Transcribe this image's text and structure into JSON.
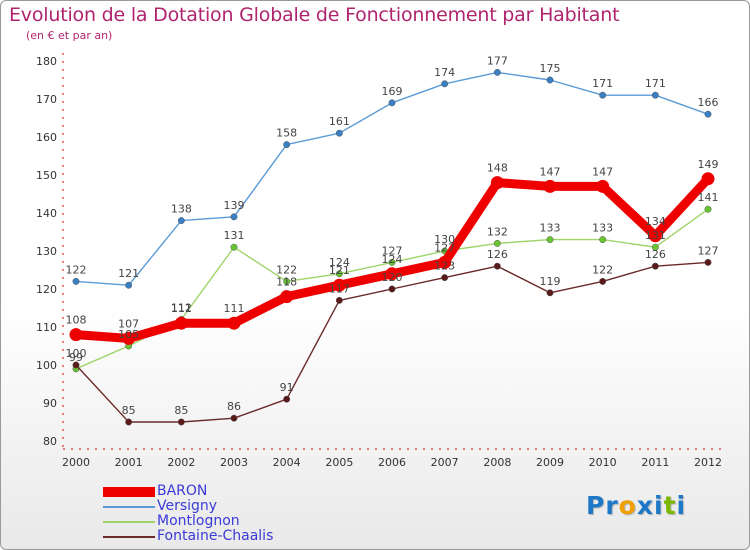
{
  "chart_data": {
    "type": "line",
    "title": "Evolution de la Dotation Globale de Fonctionnement par Habitant",
    "subtitle": "(en € et par an)",
    "xlabel": "",
    "ylabel": "",
    "ylim": [
      80,
      180
    ],
    "yticks": [
      80,
      90,
      100,
      110,
      120,
      130,
      140,
      150,
      160,
      170,
      180
    ],
    "categories": [
      "2000",
      "2001",
      "2002",
      "2003",
      "2004",
      "2005",
      "2006",
      "2007",
      "2008",
      "2009",
      "2010",
      "2011",
      "2012"
    ],
    "grid": false,
    "legend_position": "bottom-left",
    "series": [
      {
        "name": "Versigny",
        "color": "#5b9bd5",
        "marker": "#3a7fc4",
        "width": "thin",
        "values": [
          122,
          121,
          138,
          139,
          158,
          161,
          169,
          174,
          177,
          175,
          171,
          171,
          166
        ],
        "labels": [
          "122",
          "121",
          "138",
          "139",
          "158",
          "161",
          "169",
          "174",
          "177",
          "175",
          "171",
          "171",
          "166"
        ]
      },
      {
        "name": "Montlognon",
        "color": "#9ed46a",
        "marker": "#66c531",
        "width": "thin",
        "values": [
          99,
          105,
          112,
          131,
          122,
          124,
          127,
          130,
          132,
          133,
          133,
          131,
          141
        ],
        "labels": [
          "99",
          "105",
          "112",
          "131",
          "122",
          "124",
          "127",
          "130",
          "132",
          "133",
          "133",
          "131",
          "141"
        ]
      },
      {
        "name": "Fontaine-Chaalis",
        "color": "#6b2a2a",
        "marker": "#5a1a1a",
        "width": "thin",
        "values": [
          100,
          85,
          85,
          86,
          91,
          117,
          120,
          123,
          126,
          119,
          122,
          126,
          127
        ],
        "labels": [
          "100",
          "85",
          "85",
          "86",
          "91",
          "117",
          "120",
          "123",
          "126",
          "119",
          "122",
          "126",
          "127"
        ]
      },
      {
        "name": "BARON",
        "color": "#ee0000",
        "marker": "#ee0000",
        "width": "thick",
        "values": [
          108,
          107,
          111,
          111,
          118,
          121,
          124,
          127,
          148,
          147,
          147,
          134,
          149
        ],
        "labels": [
          "108",
          "107",
          "111",
          "111",
          "118",
          "121",
          "124",
          "127",
          "148",
          "147",
          "147",
          "134",
          "149"
        ]
      }
    ],
    "legend_order": [
      "BARON",
      "Versigny",
      "Montlognon",
      "Fontaine-Chaalis"
    ]
  },
  "logo": {
    "letters": [
      "P",
      "r",
      "o",
      "x",
      "i",
      "t",
      "i"
    ],
    "colors": [
      "#1e78c8",
      "#1e78c8",
      "#f0a000",
      "#1e78c8",
      "#1e78c8",
      "#7ab800",
      "#1e78c8"
    ]
  }
}
